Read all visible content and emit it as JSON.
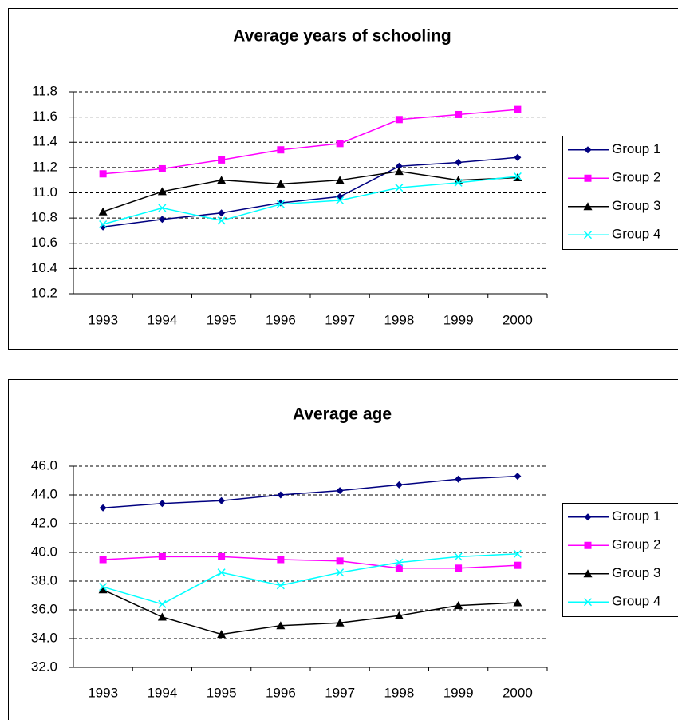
{
  "chart_data": [
    {
      "type": "line",
      "title": "Average years of schooling",
      "categories": [
        "1993",
        "1994",
        "1995",
        "1996",
        "1997",
        "1998",
        "1999",
        "2000"
      ],
      "ylim": [
        10.2,
        11.8
      ],
      "yticks": [
        10.2,
        10.4,
        10.6,
        10.8,
        {
          "value": 11,
          "label": "11.0"
        },
        11.2,
        11.4,
        11.6,
        11.8
      ],
      "grid": true,
      "legend": "right",
      "series": [
        {
          "name": "Group 1",
          "color": "#000080",
          "marker": "diamond",
          "values": [
            10.73,
            10.79,
            10.84,
            10.92,
            10.97,
            11.21,
            11.24,
            11.28
          ]
        },
        {
          "name": "Group 2",
          "color": "#ff00ff",
          "marker": "square",
          "values": [
            11.15,
            11.19,
            11.26,
            11.34,
            11.39,
            11.58,
            11.62,
            11.66
          ]
        },
        {
          "name": "Group 3",
          "color": "#000000",
          "marker": "triangle",
          "values": [
            10.85,
            11.01,
            11.1,
            11.07,
            11.1,
            11.17,
            11.1,
            11.12
          ]
        },
        {
          "name": "Group 4",
          "color": "#00ffff",
          "marker": "x",
          "values": [
            10.75,
            10.88,
            10.78,
            10.91,
            10.94,
            11.04,
            11.08,
            11.13
          ]
        }
      ]
    },
    {
      "type": "line",
      "title": "Average age",
      "categories": [
        "1993",
        "1994",
        "1995",
        "1996",
        "1997",
        "1998",
        "1999",
        "2000"
      ],
      "ylim": [
        32,
        46
      ],
      "yticks": [
        {
          "value": 32,
          "label": "32.0"
        },
        {
          "value": 34,
          "label": "34.0"
        },
        {
          "value": 36,
          "label": "36.0"
        },
        {
          "value": 38,
          "label": "38.0"
        },
        {
          "value": 40,
          "label": "40.0"
        },
        {
          "value": 42,
          "label": "42.0"
        },
        {
          "value": 44,
          "label": "44.0"
        },
        {
          "value": 46,
          "label": "46.0"
        }
      ],
      "grid": true,
      "legend": "right",
      "series": [
        {
          "name": "Group 1",
          "color": "#000080",
          "marker": "diamond",
          "values": [
            43.1,
            43.4,
            43.6,
            44.0,
            44.3,
            44.7,
            45.1,
            45.3
          ]
        },
        {
          "name": "Group 2",
          "color": "#ff00ff",
          "marker": "square",
          "values": [
            39.5,
            39.7,
            39.7,
            39.5,
            39.4,
            38.9,
            38.9,
            39.1
          ]
        },
        {
          "name": "Group 3",
          "color": "#000000",
          "marker": "triangle",
          "values": [
            37.4,
            35.5,
            34.3,
            34.9,
            35.1,
            35.6,
            36.3,
            36.5
          ]
        },
        {
          "name": "Group 4",
          "color": "#00ffff",
          "marker": "x",
          "values": [
            37.6,
            36.4,
            38.6,
            37.7,
            38.6,
            39.3,
            39.7,
            39.9
          ]
        }
      ]
    }
  ]
}
